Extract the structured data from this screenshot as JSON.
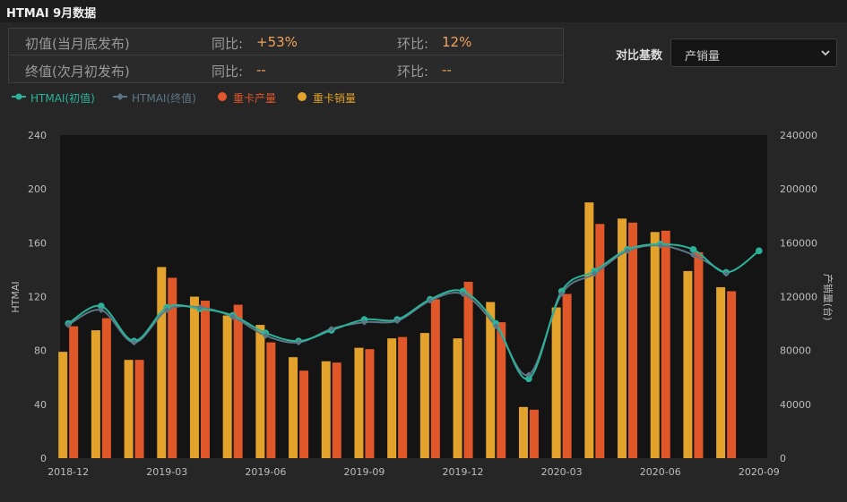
{
  "header": {
    "title": "HTMAI 9月数据"
  },
  "summary": {
    "row1": {
      "label": "初值(当月底发布)",
      "yoy_label": "同比:",
      "yoy_value": "+53%",
      "mom_label": "环比:",
      "mom_value": "12%"
    },
    "row2": {
      "label": "终值(次月初发布)",
      "yoy_label": "同比:",
      "yoy_value": "--",
      "mom_label": "环比:",
      "mom_value": "--"
    }
  },
  "compare": {
    "label": "对比基数",
    "selected": "产销量"
  },
  "legend": [
    {
      "name": "HTMAI(初值)",
      "color": "#2bb39a",
      "marker": "line-dot"
    },
    {
      "name": "HTMAI(终值)",
      "color": "#5b7786",
      "marker": "line-diamond"
    },
    {
      "name": "重卡产量",
      "color": "#e0582a",
      "marker": "dot"
    },
    {
      "name": "重卡销量",
      "color": "#e2a22c",
      "marker": "dot"
    }
  ],
  "colors": {
    "initial": "#2bb39a",
    "final": "#5b7786",
    "production": "#e0582a",
    "sales": "#e2a22c",
    "plot_bg": "#141414"
  },
  "chart_data": {
    "type": "bar",
    "x": [
      "2018-12",
      "2019-01",
      "2019-02",
      "2019-03",
      "2019-04",
      "2019-05",
      "2019-06",
      "2019-07",
      "2019-08",
      "2019-09",
      "2019-10",
      "2019-11",
      "2019-12",
      "2020-01",
      "2020-02",
      "2020-03",
      "2020-04",
      "2020-05",
      "2020-06",
      "2020-07",
      "2020-08",
      "2020-09"
    ],
    "x_tick_labels": [
      "2018-12",
      "2019-03",
      "2019-06",
      "2019-09",
      "2019-12",
      "2020-03",
      "2020-06",
      "2020-09"
    ],
    "ylabel_left": "HTMAI",
    "ylabel_right": "产销量(台)",
    "ylim_left": [
      0,
      240
    ],
    "ylim_right": [
      0,
      240000
    ],
    "yticks_left": [
      0,
      40,
      80,
      120,
      160,
      200,
      240
    ],
    "yticks_right": [
      0,
      40000,
      80000,
      120000,
      160000,
      200000,
      240000
    ],
    "series": [
      {
        "name": "重卡销量",
        "type": "bar",
        "axis": "right",
        "values": [
          79000,
          95000,
          73000,
          142000,
          120000,
          106000,
          99000,
          75000,
          72000,
          82000,
          89000,
          93000,
          89000,
          116000,
          38000,
          112000,
          190000,
          178000,
          168000,
          139000,
          127000,
          null
        ]
      },
      {
        "name": "重卡产量",
        "type": "bar",
        "axis": "right",
        "values": [
          98000,
          104000,
          73000,
          134000,
          117000,
          114000,
          86000,
          65000,
          71000,
          81000,
          90000,
          118000,
          131000,
          101000,
          36000,
          122000,
          174000,
          175000,
          169000,
          153000,
          124000,
          null
        ]
      },
      {
        "name": "HTMAI(初值)",
        "type": "line",
        "axis": "left",
        "values": [
          100,
          113,
          87,
          112,
          111,
          106,
          93,
          87,
          95,
          103,
          103,
          118,
          124,
          100,
          59,
          124,
          139,
          155,
          159,
          155,
          138,
          154
        ]
      },
      {
        "name": "HTMAI(终值)",
        "type": "line",
        "axis": "left",
        "values": [
          99,
          110,
          86,
          110,
          112,
          105,
          91,
          86,
          96,
          101,
          102,
          117,
          122,
          98,
          62,
          122,
          137,
          154,
          158,
          151,
          137,
          null
        ]
      }
    ],
    "grid": false,
    "legend_position": "top-left"
  }
}
